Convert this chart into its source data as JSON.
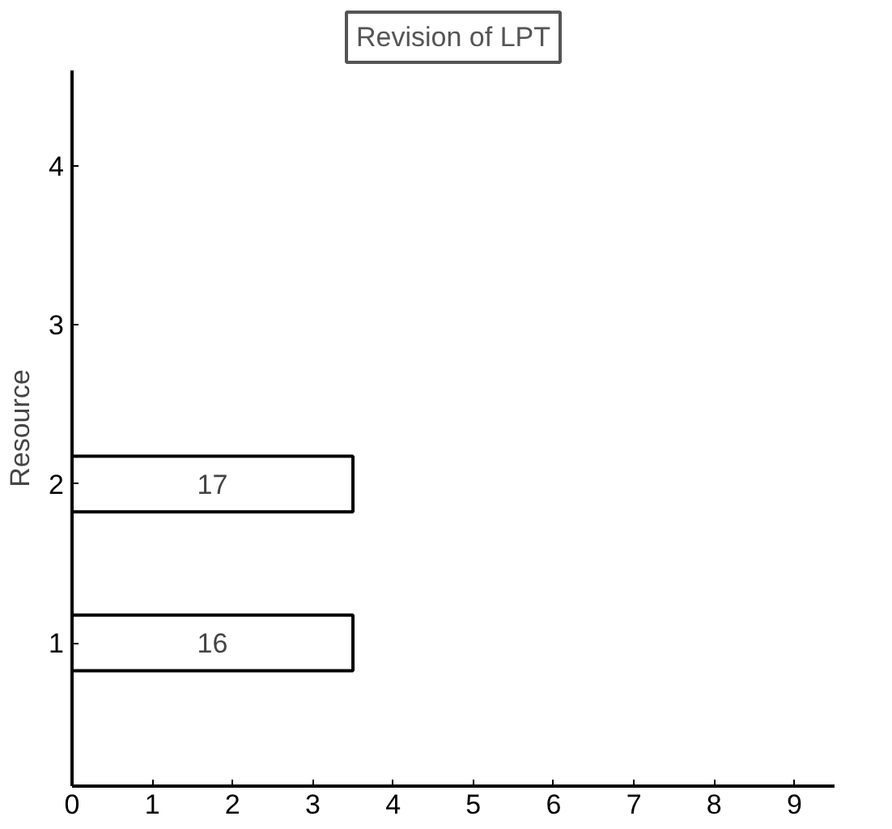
{
  "chart_data": {
    "type": "bar",
    "orientation": "horizontal",
    "title": "Revision of LPT",
    "ylabel": "Resource",
    "categories": [
      "4",
      "3",
      "2",
      "1"
    ],
    "series": [
      {
        "color": "#ffffff",
        "values": [
          null,
          null,
          3.5,
          3.5
        ]
      }
    ],
    "annotations": [
      "17",
      "16"
    ],
    "xlim": [
      0,
      9.5
    ],
    "xticks": [
      0,
      1,
      2,
      3,
      4,
      5,
      6,
      7,
      8,
      9
    ],
    "grid": false
  }
}
